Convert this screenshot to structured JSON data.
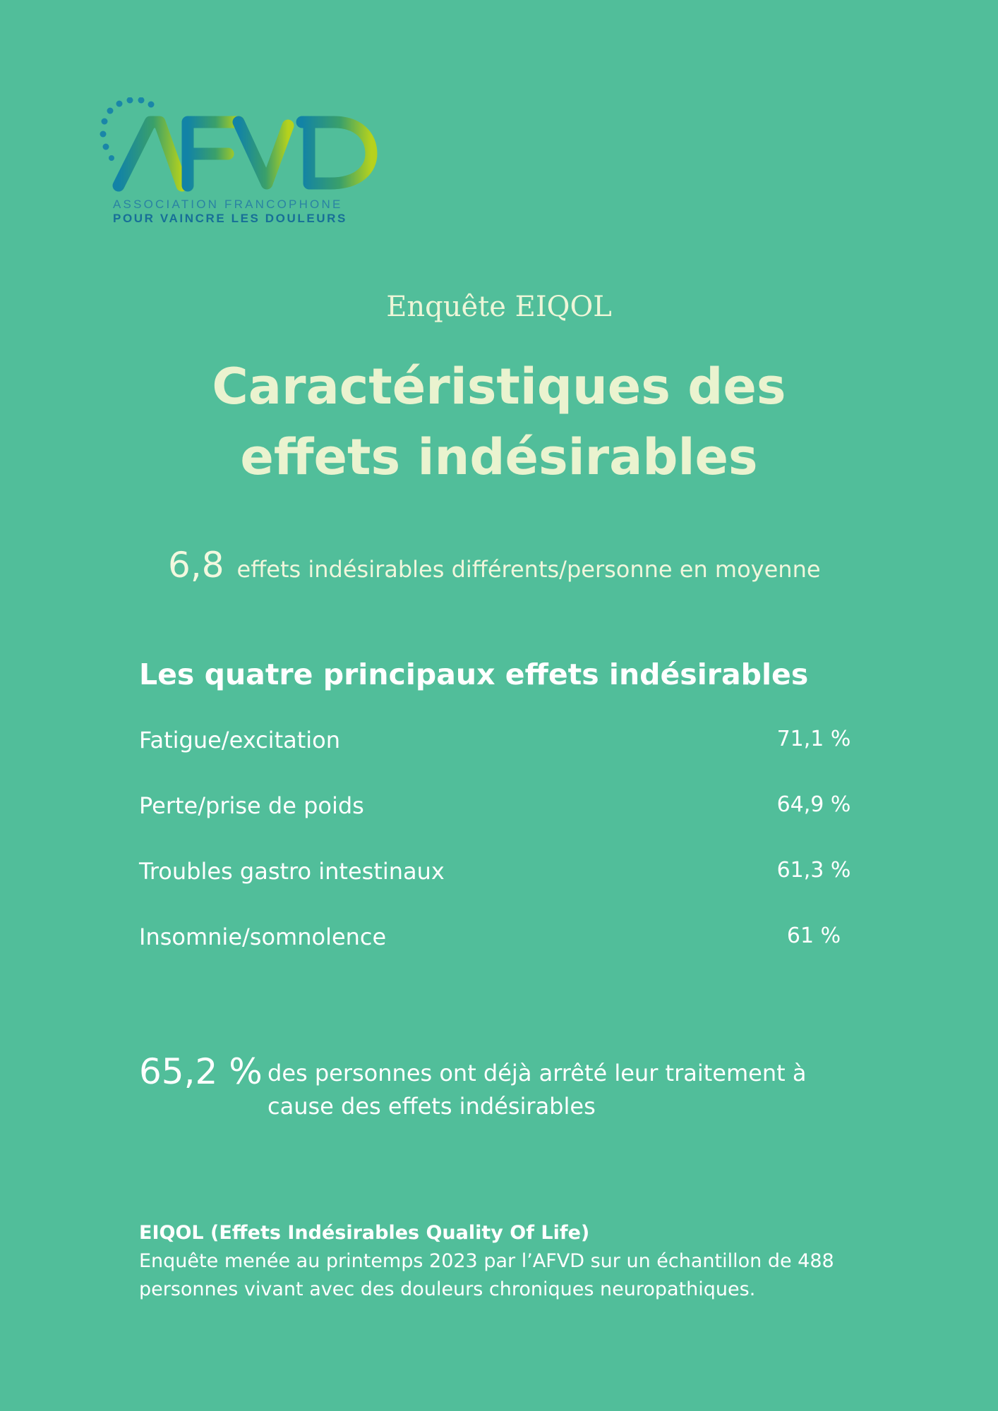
{
  "logo": {
    "wordmark": "AFVD",
    "line1": "ASSOCIATION FRANCOPHONE",
    "line2": "POUR VAINCRE LES DOULEURS",
    "colors": [
      "#1283a6",
      "#3aa06a",
      "#b6d21c"
    ]
  },
  "header": {
    "subtitle": "Enquête EIQOL",
    "title_line1": "Caractéristiques des",
    "title_line2": "effets indésirables"
  },
  "average": {
    "value": "6,8",
    "text": "effets indésirables différents/personne en moyenne"
  },
  "main_effects": {
    "heading": "Les quatre principaux effets indésirables",
    "items": [
      {
        "label": "Fatigue/excitation",
        "value": "71,1 %"
      },
      {
        "label": "Perte/prise de poids",
        "value": "64,9 %"
      },
      {
        "label": "Troubles gastro intestinaux",
        "value": "61,3 %"
      },
      {
        "label": "Insomnie/somnolence",
        "value": "61 %"
      }
    ]
  },
  "stopped_treatment": {
    "value": "65,2 %",
    "text": "des personnes ont déjà arrêté leur traitement à cause des effets indésirables"
  },
  "footnote": {
    "title": "EIQOL (Effets Indésirables Quality Of Life)",
    "text": "Enquête menée au printemps 2023 par l’AFVD sur un échantillon de 488 personnes vivant avec des douleurs chroniques neuropathiques."
  },
  "colors": {
    "background": "#51be9a",
    "title": "#eaf3cf",
    "text": "#ffffff"
  }
}
